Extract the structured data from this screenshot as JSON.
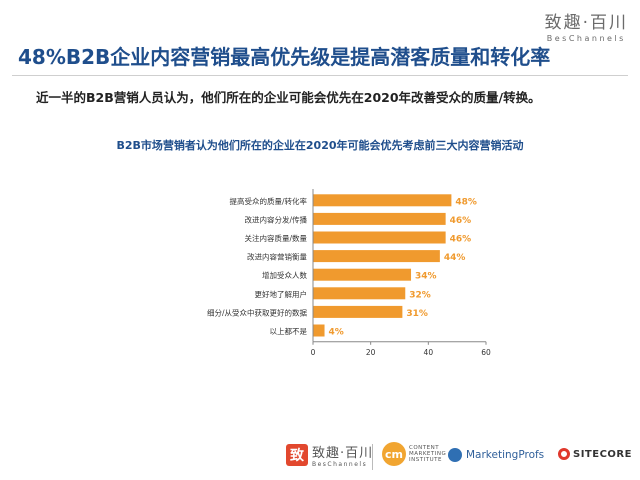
{
  "brand": {
    "name_cn": "致趣·百川",
    "name_en": "BesChannels"
  },
  "headline": "48%B2B企业内容营销最高优先级是提高潜客质量和转化率",
  "subheadline": "近一半的B2B营销人员认为，他们所在的企业可能会优先在2020年改善受众的质量/转换。",
  "chart_data": {
    "type": "bar",
    "orientation": "horizontal",
    "title": "B2B市场营销者认为他们所在的企业在2020年可能会优先考虑前三大内容营销活动",
    "categories": [
      "提高受众的质量/转化率",
      "改进内容分发/传播",
      "关注内容质量/数量",
      "改进内容营销衡量",
      "增加受众人数",
      "更好地了解用户",
      "细分/从受众中获取更好的数据",
      "以上都不是"
    ],
    "values": [
      48,
      46,
      46,
      44,
      34,
      32,
      31,
      4
    ],
    "value_labels": [
      "48%",
      "46%",
      "46%",
      "44%",
      "34%",
      "32%",
      "31%",
      "4%"
    ],
    "xlim": [
      0,
      60
    ],
    "xticks": [
      "0",
      "20",
      "40",
      "60"
    ],
    "bar_color": "#f09a2e",
    "label_color": "#f09a2e",
    "grid": false
  },
  "footer": {
    "logos": [
      {
        "name": "致趣·百川",
        "sub": "BesChannels"
      },
      {
        "name": "CONTENT MARKETING INSTITUTE",
        "mark": "cm"
      },
      {
        "name": "MarketingProfs"
      },
      {
        "name": "SITECORE"
      }
    ]
  }
}
